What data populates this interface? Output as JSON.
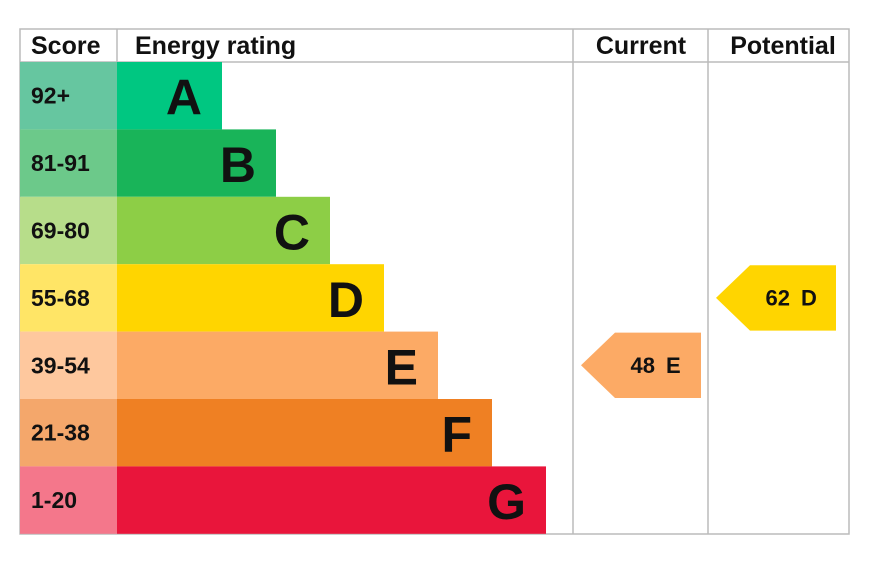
{
  "header": {
    "score": "Score",
    "rating": "Energy rating",
    "current": "Current",
    "potential": "Potential"
  },
  "rows": [
    {
      "score": "92+",
      "letter": "A",
      "score_color": "#66c6a0",
      "bar_color": "#00c781"
    },
    {
      "score": "81-91",
      "letter": "B",
      "score_color": "#6cc98a",
      "bar_color": "#19b459"
    },
    {
      "score": "69-80",
      "letter": "C",
      "score_color": "#b7dd8a",
      "bar_color": "#8dce46"
    },
    {
      "score": "55-68",
      "letter": "D",
      "score_color": "#ffe566",
      "bar_color": "#ffd500"
    },
    {
      "score": "39-54",
      "letter": "E",
      "score_color": "#fec89e",
      "bar_color": "#fcaa65"
    },
    {
      "score": "21-38",
      "letter": "F",
      "score_color": "#f4a76b",
      "bar_color": "#ef8023"
    },
    {
      "score": "1-20",
      "letter": "G",
      "score_color": "#f4778b",
      "bar_color": "#e9153b"
    }
  ],
  "current": {
    "score": 48,
    "rating": "E"
  },
  "potential": {
    "score": 62,
    "rating": "D"
  }
}
